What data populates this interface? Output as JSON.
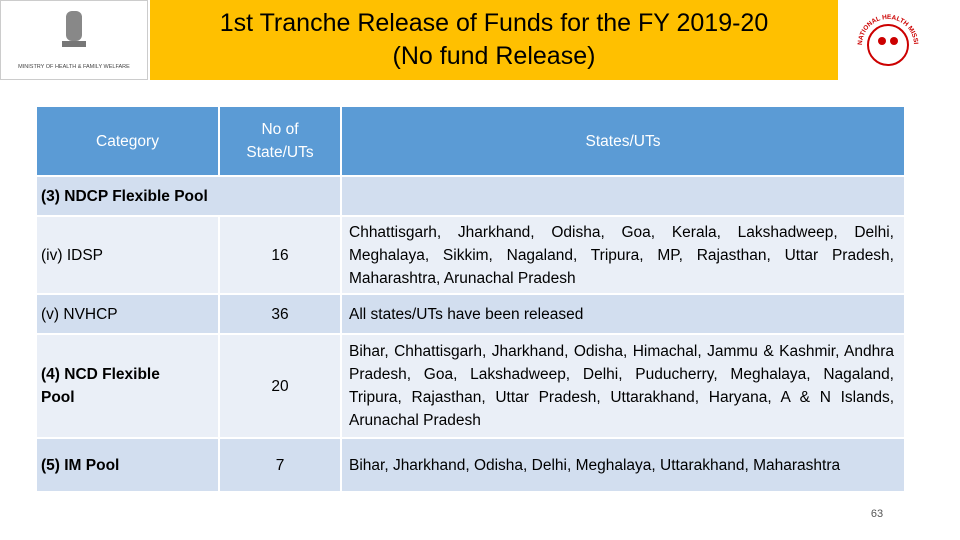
{
  "header": {
    "title_lines": [
      "1st Tranche Release of Funds for the FY 2019-20",
      "(No fund Release)"
    ],
    "left_logo_text": "MINISTRY OF HEALTH & FAMILY WELFARE",
    "right_logo_text": "NATIONAL HEALTH MISSION"
  },
  "table": {
    "columns": [
      "Category",
      "No of State/UTs",
      "States/UTs"
    ],
    "section": "(3) NDCP Flexible Pool",
    "rows": [
      [
        "(iv) IDSP",
        16,
        "Chhattisgarh, Jharkhand, Odisha, Goa, Kerala, Lakshadweep, Delhi, Meghalaya, Sikkim, Nagaland, Tripura, MP, Rajasthan, Uttar Pradesh, Maharashtra, Arunachal Pradesh"
      ],
      [
        "(v) NVHCP",
        36,
        "All states/UTs have been released"
      ],
      [
        "(4) NCD Flexible Pool",
        20,
        "Bihar, Chhattisgarh, Jharkhand, Odisha, Himachal, Jammu & Kashmir, Andhra Pradesh, Goa, Lakshadweep, Delhi, Puducherry, Meghalaya, Nagaland, Tripura, Rajasthan, Uttar Pradesh, Uttarakhand, Haryana, A & N Islands, Arunachal Pradesh"
      ],
      [
        "(5) IM Pool",
        7,
        "Bihar, Jharkhand, Odisha, Delhi, Meghalaya, Uttarakhand, Maharashtra"
      ]
    ]
  },
  "page_number": 63
}
